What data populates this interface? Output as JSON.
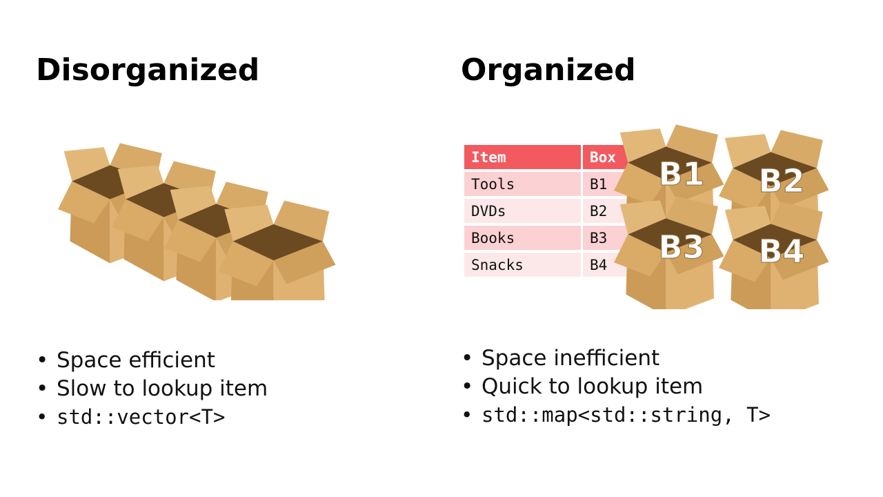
{
  "left": {
    "heading": "Disorganized",
    "bullets": [
      "Space efficient",
      "Slow to lookup item",
      "std::vector<T>"
    ]
  },
  "right": {
    "heading": "Organized",
    "table": {
      "headers": [
        "Item",
        "Box"
      ],
      "rows": [
        [
          "Tools",
          "B1"
        ],
        [
          "DVDs",
          "B2"
        ],
        [
          "Books",
          "B3"
        ],
        [
          "Snacks",
          "B4"
        ]
      ]
    },
    "box_labels": [
      "B1",
      "B2",
      "B3",
      "B4"
    ],
    "bullets": [
      "Space inefficient",
      "Quick to lookup item",
      "std::map<std::string, T>"
    ]
  },
  "colors": {
    "table_header": "#f25a5f",
    "table_row_dark": "#fcd1d3",
    "table_row_light": "#fde8e9",
    "cardboard": "#d6a866"
  }
}
